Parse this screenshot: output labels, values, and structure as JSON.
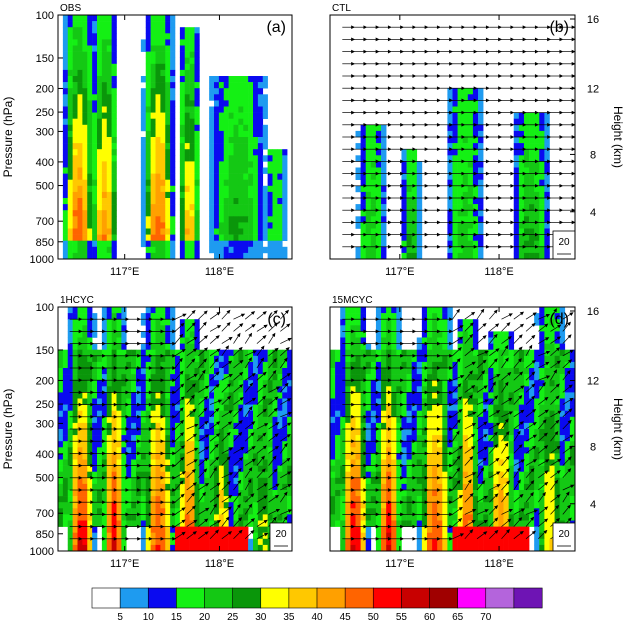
{
  "chart_data": [
    {
      "type": "heatmap",
      "panel_name": "OBS",
      "panel_label": "(a)",
      "ylabel_left": "Pressure (hPa)",
      "ylabel_right": "",
      "y_ticks": [
        "100",
        "150",
        "200",
        "250",
        "300",
        "400",
        "500",
        "700",
        "850",
        "1000"
      ],
      "x_ticks": [
        "117°E",
        "118°E"
      ],
      "vectors": false,
      "reference_vector": ""
    },
    {
      "type": "heatmap",
      "panel_name": "CTL",
      "panel_label": "(b)",
      "ylabel_left": "",
      "ylabel_right": "Height (km)",
      "y_ticks_right": [
        "16",
        "12",
        "8",
        "4"
      ],
      "x_ticks": [
        "117°E",
        "118°E"
      ],
      "vectors": true,
      "reference_vector": "20"
    },
    {
      "type": "heatmap",
      "panel_name": "1HCYC",
      "panel_label": "(c)",
      "ylabel_left": "Pressure (hPa)",
      "ylabel_right": "",
      "y_ticks": [
        "100",
        "150",
        "200",
        "250",
        "300",
        "400",
        "500",
        "700",
        "850",
        "1000"
      ],
      "x_ticks": [
        "117°E",
        "118°E"
      ],
      "vectors": true,
      "reference_vector": "20"
    },
    {
      "type": "heatmap",
      "panel_name": "15MCYC",
      "panel_label": "(d)",
      "ylabel_left": "",
      "ylabel_right": "Height (km)",
      "y_ticks_right": [
        "16",
        "12",
        "8",
        "4"
      ],
      "x_ticks": [
        "117°E",
        "118°E"
      ],
      "vectors": true,
      "reference_vector": "20"
    }
  ],
  "colorbar": {
    "labels": [
      "5",
      "10",
      "15",
      "20",
      "25",
      "30",
      "35",
      "40",
      "45",
      "50",
      "55",
      "60",
      "65",
      "70"
    ],
    "colors": [
      "#ffffff",
      "#1e9bf0",
      "#0a0af0",
      "#14f014",
      "#14c814",
      "#0a960a",
      "#ffff00",
      "#ffc800",
      "#ffa000",
      "#ff6400",
      "#ff0000",
      "#c80000",
      "#a00000",
      "#ff00ff",
      "#b464dc",
      "#6e14b4"
    ]
  }
}
